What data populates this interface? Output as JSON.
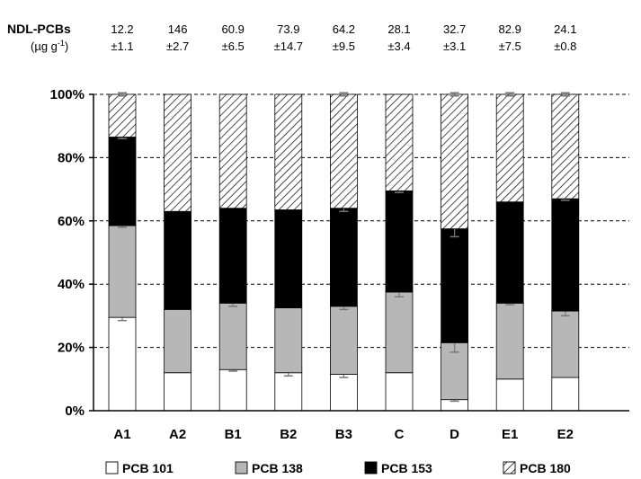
{
  "header": {
    "label": "NDL-PCBs",
    "unit": "(µg g",
    "unit_exp": "-1",
    "unit_close": ")",
    "means": [
      "12.2",
      "146",
      "60.9",
      "73.9",
      "64.2",
      "28.1",
      "32.7",
      "82.9",
      "24.1"
    ],
    "errors": [
      "±1.1",
      "±2.7",
      "±6.5",
      "±14.7",
      "±9.5",
      "±3.4",
      "±3.1",
      "±7.5",
      "±0.8"
    ]
  },
  "chart_data": {
    "type": "bar",
    "stacked": true,
    "percent": true,
    "categories": [
      "A1",
      "A2",
      "B1",
      "B2",
      "B3",
      "C",
      "D",
      "E1",
      "E2"
    ],
    "ylim": [
      0,
      100
    ],
    "yticks": [
      "0%",
      "20%",
      "40%",
      "60%",
      "80%",
      "100%"
    ],
    "grid": "horizontal dashed",
    "legend_position": "bottom",
    "series": [
      {
        "name": "PCB 101",
        "fill": "white",
        "color": "#ffffff",
        "values": [
          29.5,
          12,
          13,
          12,
          11.5,
          12,
          3.5,
          10,
          10.5
        ],
        "errors": [
          1,
          0,
          0.5,
          1,
          1,
          0,
          0.5,
          0,
          0
        ]
      },
      {
        "name": "PCB 138",
        "fill": "gray",
        "color": "#b7b7b7",
        "values": [
          29,
          20,
          21,
          20.5,
          21.5,
          25.5,
          18,
          24,
          21
        ],
        "errors": [
          0.5,
          0,
          1,
          0,
          1,
          1.5,
          3,
          0.5,
          1.5
        ]
      },
      {
        "name": "PCB 153",
        "fill": "black",
        "color": "#000000",
        "values": [
          28,
          31,
          30,
          31,
          31,
          32,
          36,
          32,
          35.5
        ],
        "errors": [
          0.5,
          0,
          0,
          0,
          1,
          0.5,
          2.5,
          0,
          0.5
        ]
      },
      {
        "name": "PCB 180",
        "fill": "hatch",
        "color": "#ffffff",
        "values": [
          13.5,
          37,
          36,
          36.5,
          36,
          30.5,
          42.5,
          34,
          33
        ],
        "errors": [
          0.5,
          0,
          0,
          0,
          0.5,
          0,
          0.5,
          0.5,
          0.5
        ]
      }
    ]
  }
}
